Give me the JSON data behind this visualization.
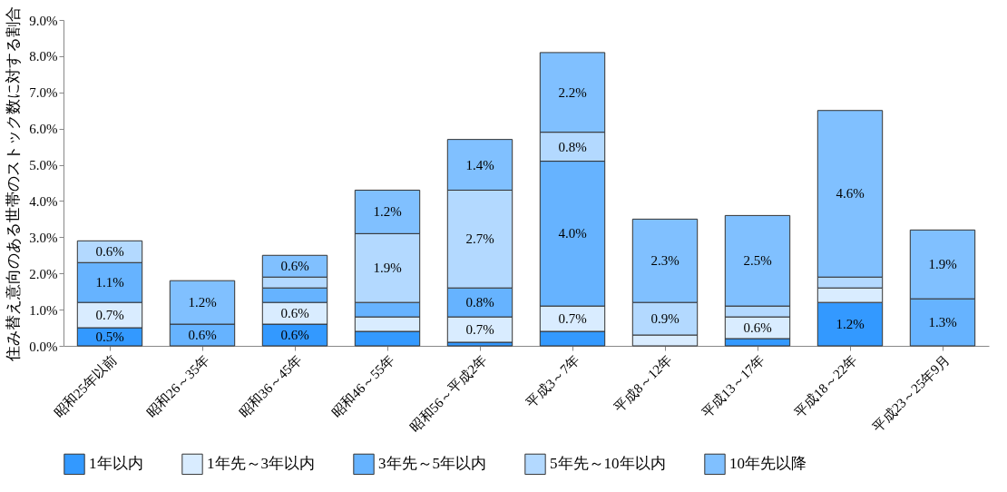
{
  "chart_data": {
    "type": "bar",
    "stacked": true,
    "ylabel": "住み替え意向のある世帯のストック数に対する割合",
    "categories": [
      "昭和25年以前",
      "昭和26～35年",
      "昭和36～45年",
      "昭和46～55年",
      "昭和56～平成2年",
      "平成3～7年",
      "平成8～12年",
      "平成13～17年",
      "平成18～22年",
      "平成23～25年9月"
    ],
    "series": [
      {
        "name": "1年以内",
        "color": "#3399ff",
        "values": [
          0.5,
          0,
          0.6,
          0.4,
          0.1,
          0.4,
          0,
          0.2,
          1.2,
          0
        ],
        "value_labels": [
          "0.5%",
          null,
          "0.6%",
          null,
          null,
          null,
          null,
          null,
          "1.2%",
          null
        ]
      },
      {
        "name": "1年先～3年以内",
        "color": "#d9ecff",
        "values": [
          0.7,
          0,
          0.6,
          0.4,
          0.7,
          0.7,
          0.3,
          0.6,
          0.4,
          0
        ],
        "value_labels": [
          "0.7%",
          null,
          "0.6%",
          null,
          "0.7%",
          "0.7%",
          null,
          "0.6%",
          null,
          null
        ]
      },
      {
        "name": "3年先～5年以内",
        "color": "#66b3ff",
        "values": [
          1.1,
          0.6,
          0.4,
          0.4,
          0.8,
          4.0,
          0,
          0,
          0,
          1.3
        ],
        "value_labels": [
          "1.1%",
          "0.6%",
          null,
          null,
          "0.8%",
          "4.0%",
          null,
          null,
          null,
          "1.3%"
        ]
      },
      {
        "name": "5年先～10年以内",
        "color": "#b3d9ff",
        "values": [
          0.6,
          0,
          0.3,
          1.9,
          2.7,
          0.8,
          0.9,
          0.3,
          0.3,
          0
        ],
        "value_labels": [
          "0.6%",
          null,
          null,
          "1.9%",
          "2.7%",
          "0.8%",
          "0.9%",
          null,
          null,
          null
        ]
      },
      {
        "name": "10年先以降",
        "color": "#80c0ff",
        "values": [
          0,
          1.2,
          0.6,
          1.2,
          1.4,
          2.2,
          2.3,
          2.5,
          4.6,
          1.9
        ],
        "value_labels": [
          null,
          "1.2%",
          "0.6%",
          "1.2%",
          "1.4%",
          "2.2%",
          "2.3%",
          "2.5%",
          "4.6%",
          "1.9%"
        ]
      }
    ],
    "ylim": [
      0,
      9
    ],
    "yticks": [
      {
        "value": 0,
        "label": "0.0%"
      },
      {
        "value": 1,
        "label": "1.0%"
      },
      {
        "value": 2,
        "label": "2.0%"
      },
      {
        "value": 3,
        "label": "3.0%"
      },
      {
        "value": 4,
        "label": "4.0%"
      },
      {
        "value": 5,
        "label": "5.0%"
      },
      {
        "value": 6,
        "label": "6.0%"
      },
      {
        "value": 7,
        "label": "7.0%"
      },
      {
        "value": 8,
        "label": "8.0%"
      },
      {
        "value": 9,
        "label": "9.0%"
      }
    ],
    "grid": false,
    "legend": "bottom"
  }
}
